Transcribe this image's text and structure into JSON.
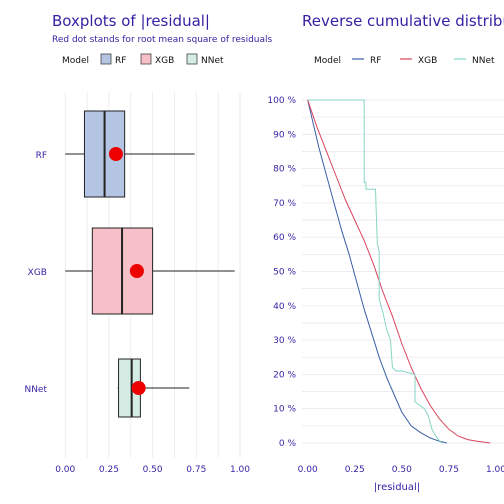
{
  "chart_data": [
    {
      "type": "boxplot",
      "title": "Boxplots of |residual|",
      "subtitle": "Red dot stands for root mean square of residuals",
      "legend_title": "Model",
      "legend_position": "top-left",
      "xlim": [
        -0.03,
        1.0
      ],
      "x_ticks": [
        "0.00",
        "0.25",
        "0.50",
        "0.75",
        "1.00"
      ],
      "x_tick_values": [
        0,
        0.25,
        0.5,
        0.75,
        1.0
      ],
      "grid": true,
      "series": [
        {
          "name": "RF",
          "color": "#b3c5e3",
          "whisker_low": 0.0,
          "q1": 0.11,
          "median": 0.225,
          "q3": 0.34,
          "whisker_high": 0.74,
          "rmse": 0.29
        },
        {
          "name": "XGB",
          "color": "#f7bfc7",
          "whisker_low": 0.0,
          "q1": 0.155,
          "median": 0.325,
          "q3": 0.5,
          "whisker_high": 0.97,
          "rmse": 0.41
        },
        {
          "name": "NNet",
          "color": "#d4ece4",
          "whisker_low": 0.3,
          "q1": 0.305,
          "median": 0.38,
          "q3": 0.43,
          "whisker_high": 0.71,
          "rmse": 0.42
        }
      ]
    },
    {
      "type": "line",
      "title": "Reverse cumulative distributio",
      "xlabel": "|residual|",
      "legend_title": "Model",
      "legend_position": "top-left",
      "xlim": [
        -0.03,
        1.0
      ],
      "ylim": [
        0,
        1
      ],
      "x_ticks": [
        "0.00",
        "0.25",
        "0.50",
        "0.75",
        "1.00"
      ],
      "x_tick_values": [
        0,
        0.25,
        0.5,
        0.75,
        1.0
      ],
      "y_ticks": [
        "0 %",
        "10 %",
        "20 %",
        "30 %",
        "40 %",
        "50 %",
        "60 %",
        "70 %",
        "80 %",
        "90 %",
        "100 %"
      ],
      "y_tick_values": [
        0,
        0.1,
        0.2,
        0.3,
        0.4,
        0.5,
        0.6,
        0.7,
        0.8,
        0.9,
        1.0
      ],
      "grid": true,
      "series": [
        {
          "name": "RF",
          "color": "#3a5fa6",
          "x": [
            0,
            0.03,
            0.06,
            0.1,
            0.14,
            0.18,
            0.22,
            0.26,
            0.3,
            0.34,
            0.38,
            0.42,
            0.46,
            0.5,
            0.55,
            0.6,
            0.65,
            0.7,
            0.74
          ],
          "y": [
            1.0,
            0.93,
            0.86,
            0.78,
            0.7,
            0.62,
            0.55,
            0.47,
            0.39,
            0.32,
            0.25,
            0.19,
            0.14,
            0.09,
            0.05,
            0.03,
            0.015,
            0.005,
            0.0
          ]
        },
        {
          "name": "XGB",
          "color": "#d9445c",
          "x": [
            0,
            0.05,
            0.1,
            0.15,
            0.2,
            0.25,
            0.3,
            0.35,
            0.4,
            0.45,
            0.5,
            0.55,
            0.6,
            0.65,
            0.7,
            0.75,
            0.8,
            0.85,
            0.9,
            0.97
          ],
          "y": [
            1.0,
            0.92,
            0.85,
            0.78,
            0.71,
            0.65,
            0.59,
            0.52,
            0.44,
            0.37,
            0.29,
            0.22,
            0.16,
            0.11,
            0.07,
            0.04,
            0.02,
            0.01,
            0.005,
            0.0
          ]
        },
        {
          "name": "NNet",
          "color": "#86d6c4",
          "x": [
            0,
            0.3,
            0.3,
            0.31,
            0.31,
            0.33,
            0.36,
            0.37,
            0.38,
            0.38,
            0.4,
            0.42,
            0.44,
            0.45,
            0.47,
            0.5,
            0.57,
            0.57,
            0.62,
            0.64,
            0.66,
            0.68,
            0.71
          ],
          "y": [
            1.0,
            1.0,
            0.76,
            0.76,
            0.74,
            0.74,
            0.74,
            0.58,
            0.56,
            0.42,
            0.38,
            0.33,
            0.3,
            0.22,
            0.21,
            0.21,
            0.2,
            0.12,
            0.1,
            0.08,
            0.04,
            0.02,
            0.0
          ]
        }
      ]
    }
  ]
}
